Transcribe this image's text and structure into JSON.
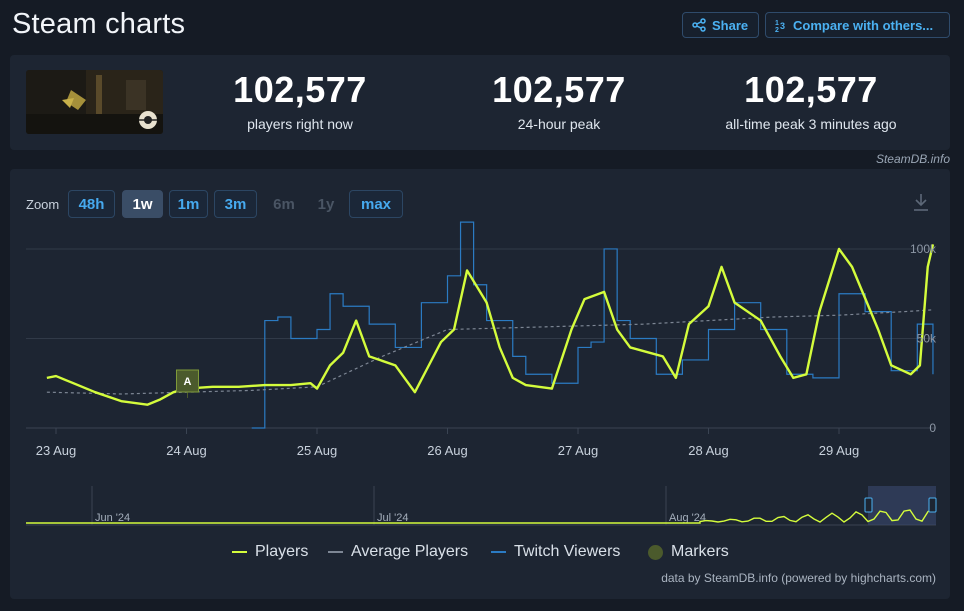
{
  "page": {
    "title": "Steam charts"
  },
  "header": {
    "share_label": "Share",
    "compare_label": "Compare with others..."
  },
  "stats": [
    {
      "value": "102,577",
      "label": "players right now"
    },
    {
      "value": "102,577",
      "label": "24-hour peak"
    },
    {
      "value": "102,577",
      "label": "all-time peak 3 minutes ago"
    }
  ],
  "credit": "SteamDB.info",
  "zoom": {
    "label": "Zoom",
    "options": [
      {
        "label": "48h",
        "state": "enabled"
      },
      {
        "label": "1w",
        "state": "selected"
      },
      {
        "label": "1m",
        "state": "enabled"
      },
      {
        "label": "3m",
        "state": "enabled"
      },
      {
        "label": "6m",
        "state": "disabled"
      },
      {
        "label": "1y",
        "state": "disabled"
      },
      {
        "label": "max",
        "state": "enabled"
      }
    ]
  },
  "colors": {
    "players": "#d4fc3c",
    "average": "#7d8694",
    "twitch": "#2b7bc3",
    "markers": "#4b5a2c",
    "background": "#1d2532"
  },
  "chart_data": {
    "type": "line",
    "x_tick_labels": [
      "23 Aug",
      "24 Aug",
      "25 Aug",
      "26 Aug",
      "27 Aug",
      "28 Aug",
      "29 Aug"
    ],
    "y_tick_labels": [
      "0",
      "50k",
      "100k"
    ],
    "ylim": [
      0,
      105000
    ],
    "xlim": [
      -0.07,
      6.72
    ],
    "grid": true,
    "series": [
      {
        "name": "Players",
        "x": [
          -0.07,
          0.0,
          0.1,
          0.3,
          0.5,
          0.7,
          0.8,
          0.9,
          0.95,
          1.0,
          1.2,
          1.4,
          1.6,
          1.8,
          1.95,
          2.0,
          2.1,
          2.2,
          2.3,
          2.4,
          2.6,
          2.75,
          2.85,
          2.95,
          3.05,
          3.15,
          3.3,
          3.4,
          3.5,
          3.6,
          3.8,
          3.95,
          4.05,
          4.2,
          4.3,
          4.4,
          4.55,
          4.65,
          4.75,
          4.85,
          5.0,
          5.1,
          5.2,
          5.4,
          5.55,
          5.65,
          5.75,
          5.85,
          6.0,
          6.1,
          6.3,
          6.4,
          6.55,
          6.62,
          6.68,
          6.72
        ],
        "y": [
          28000,
          29000,
          26000,
          20000,
          15000,
          13000,
          16000,
          20000,
          21000,
          22000,
          23000,
          23000,
          24000,
          24000,
          25000,
          22000,
          35000,
          42000,
          60000,
          40000,
          35000,
          20000,
          34000,
          48000,
          55000,
          88000,
          70000,
          45000,
          28000,
          24000,
          22000,
          55000,
          72000,
          76000,
          55000,
          45000,
          42000,
          40000,
          28000,
          58000,
          68000,
          90000,
          70000,
          60000,
          40000,
          28000,
          30000,
          65000,
          100000,
          90000,
          55000,
          35000,
          30000,
          35000,
          90000,
          102577
        ]
      },
      {
        "name": "Average Players",
        "x": [
          -0.07,
          0.5,
          1.0,
          1.5,
          2.0,
          2.5,
          3.0,
          3.5,
          4.0,
          4.5,
          5.0,
          5.5,
          6.0,
          6.5,
          6.72
        ],
        "y": [
          20000,
          19000,
          20000,
          21000,
          23000,
          40000,
          55000,
          56000,
          57000,
          58000,
          60000,
          62000,
          63000,
          65000,
          66000
        ]
      },
      {
        "name": "Twitch Viewers",
        "x": [
          1.5,
          1.6,
          1.7,
          1.8,
          2.0,
          2.1,
          2.2,
          2.4,
          2.6,
          2.8,
          3.0,
          3.1,
          3.2,
          3.3,
          3.5,
          3.6,
          3.8,
          4.0,
          4.1,
          4.2,
          4.3,
          4.4,
          4.6,
          4.8,
          5.0,
          5.2,
          5.4,
          5.6,
          5.8,
          6.0,
          6.2,
          6.4,
          6.6,
          6.72
        ],
        "y": [
          0,
          60000,
          62000,
          50000,
          55000,
          75000,
          68000,
          58000,
          45000,
          70000,
          85000,
          115000,
          80000,
          60000,
          40000,
          30000,
          25000,
          45000,
          48000,
          100000,
          60000,
          50000,
          30000,
          38000,
          55000,
          70000,
          55000,
          30000,
          28000,
          75000,
          65000,
          32000,
          58000,
          30000
        ]
      }
    ],
    "markers": [
      {
        "label": "A",
        "x": 1.0
      }
    ],
    "navigator": {
      "labels": [
        "Jun '24",
        "Jul '24",
        "Aug '24"
      ]
    }
  },
  "legend": [
    {
      "name": "Players"
    },
    {
      "name": "Average Players"
    },
    {
      "name": "Twitch Viewers"
    },
    {
      "name": "Markers"
    }
  ],
  "footer": {
    "credit": "data by SteamDB.info (powered by highcharts.com)"
  }
}
